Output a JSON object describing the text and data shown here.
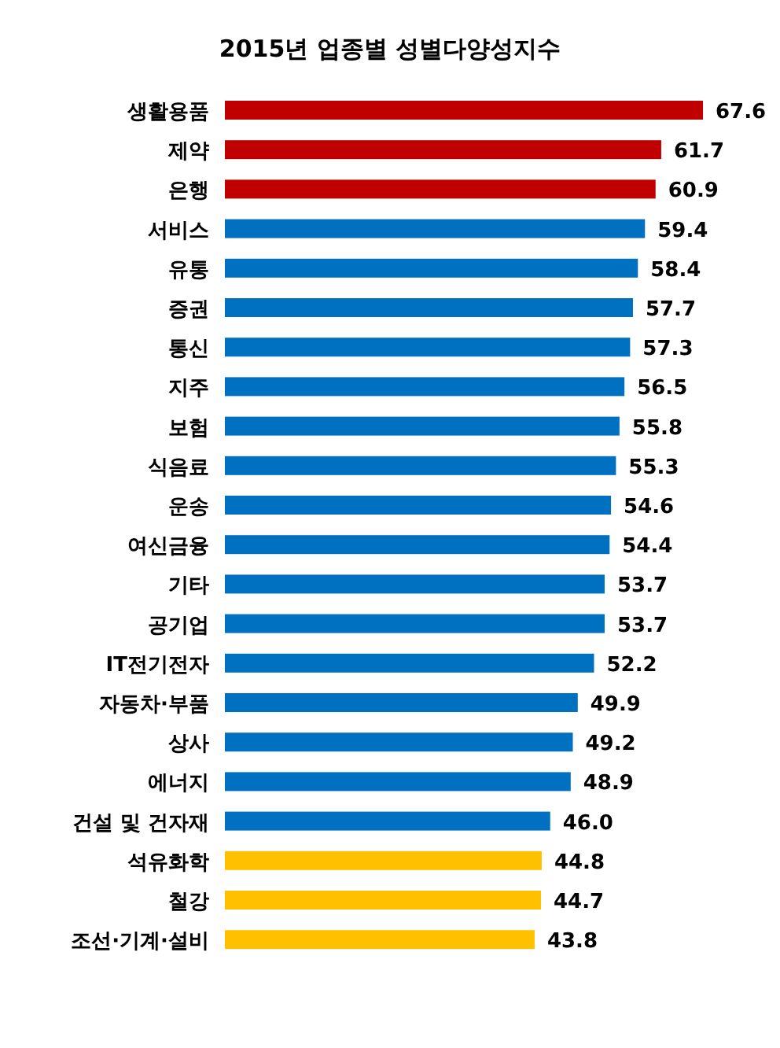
{
  "chart_data": {
    "type": "bar",
    "orientation": "horizontal",
    "title": "2015년 업종별 성별다양성지수",
    "categories": [
      "생활용품",
      "제약",
      "은행",
      "서비스",
      "유통",
      "증권",
      "통신",
      "지주",
      "보험",
      "식음료",
      "운송",
      "여신금융",
      "기타",
      "공기업",
      "IT전기전자",
      "자동차·부품",
      "상사",
      "에너지",
      "건설 및 건자재",
      "석유화학",
      "철강",
      "조선·기계·설비"
    ],
    "values": [
      67.6,
      61.7,
      60.9,
      59.4,
      58.4,
      57.7,
      57.3,
      56.5,
      55.8,
      55.3,
      54.6,
      54.4,
      53.7,
      53.7,
      52.2,
      49.9,
      49.2,
      48.9,
      46.0,
      44.8,
      44.7,
      43.8
    ],
    "colors": [
      "#c00000",
      "#c00000",
      "#c00000",
      "#0070c0",
      "#0070c0",
      "#0070c0",
      "#0070c0",
      "#0070c0",
      "#0070c0",
      "#0070c0",
      "#0070c0",
      "#0070c0",
      "#0070c0",
      "#0070c0",
      "#0070c0",
      "#0070c0",
      "#0070c0",
      "#0070c0",
      "#0070c0",
      "#ffc000",
      "#ffc000",
      "#ffc000"
    ],
    "value_labels": [
      "67.6",
      "61.7",
      "60.9",
      "59.4",
      "58.4",
      "57.7",
      "57.3",
      "56.5",
      "55.8",
      "55.3",
      "54.6",
      "54.4",
      "53.7",
      "53.7",
      "52.2",
      "49.9",
      "49.2",
      "48.9",
      "46.0",
      "44.8",
      "44.7",
      "43.8"
    ],
    "data_labels": false
  }
}
